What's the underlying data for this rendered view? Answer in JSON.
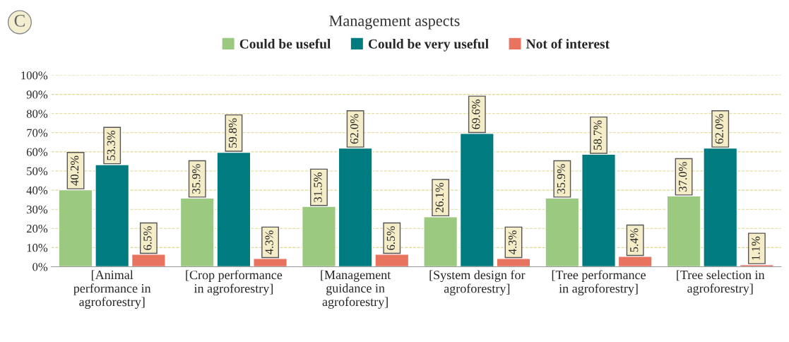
{
  "chart_data": {
    "type": "bar",
    "title": "Management aspects",
    "categories": [
      "[Animal\nperformance in\nagroforestry]",
      "[Crop performance\nin agroforestry]",
      "[Management\nguidance in\nagroforestry]",
      "[System design for\nagroforestry]",
      "[Tree performance\nin agroforestry]",
      "[Tree selection in\nagroforestry]"
    ],
    "series": [
      {
        "name": "Could be useful",
        "color": "#9bc97f",
        "values": [
          40.2,
          35.9,
          31.5,
          26.1,
          35.9,
          37.0
        ],
        "value_labels": [
          "40.2%",
          "35.9%",
          "31.5%",
          "26.1%",
          "35.9%",
          "37.0%"
        ]
      },
      {
        "name": "Could be very useful",
        "color": "#007b7f",
        "values": [
          53.3,
          59.8,
          62.0,
          69.6,
          58.7,
          62.0
        ],
        "value_labels": [
          "53.3%",
          "59.8%",
          "62.0%",
          "69.6%",
          "58.7%",
          "62.0%"
        ]
      },
      {
        "name": "Not of interest",
        "color": "#e8735f",
        "values": [
          6.5,
          4.3,
          6.5,
          4.3,
          5.4,
          1.1
        ],
        "value_labels": [
          "6.5%",
          "4.3%",
          "6.5%",
          "4.3%",
          "5.4%",
          "1.1%"
        ]
      }
    ],
    "ylim": [
      0,
      100
    ],
    "yticks": [
      {
        "value": 0,
        "label": "0%"
      },
      {
        "value": 10,
        "label": "10%"
      },
      {
        "value": 20,
        "label": "20%"
      },
      {
        "value": 30,
        "label": "30%"
      },
      {
        "value": 40,
        "label": "40%"
      },
      {
        "value": 50,
        "label": "50%"
      },
      {
        "value": 60,
        "label": "60%"
      },
      {
        "value": 70,
        "label": "70%"
      },
      {
        "value": 80,
        "label": "80%"
      },
      {
        "value": 90,
        "label": "90%"
      },
      {
        "value": 100,
        "label": "100%"
      }
    ],
    "grid": "y",
    "legend": "top",
    "annotations": [
      "C"
    ]
  }
}
